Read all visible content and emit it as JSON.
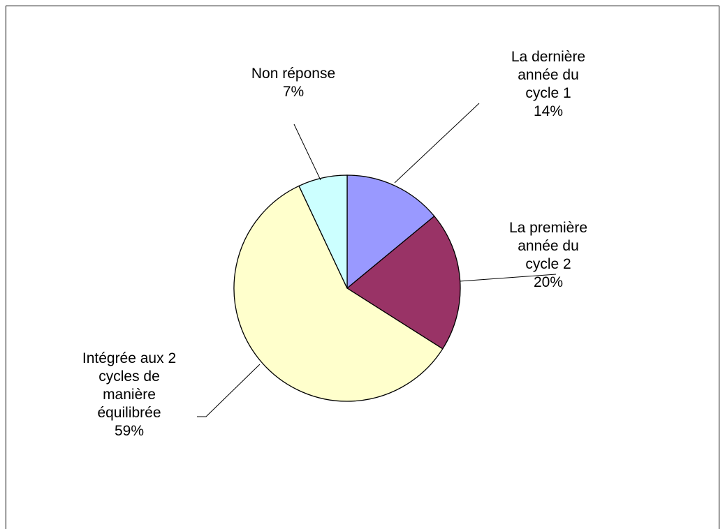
{
  "chart_data": {
    "type": "pie",
    "categories": [
      "La dernière année du cycle 1",
      "La première année du cycle 2",
      "Intégrée aux 2 cycles de manière équilibrée",
      "Non réponse"
    ],
    "values": [
      14,
      20,
      59,
      7
    ],
    "value_labels": [
      "14%",
      "20%",
      "59%",
      "7%"
    ],
    "colors": [
      "#9999ff",
      "#993366",
      "#ffffcc",
      "#ccffff"
    ]
  }
}
